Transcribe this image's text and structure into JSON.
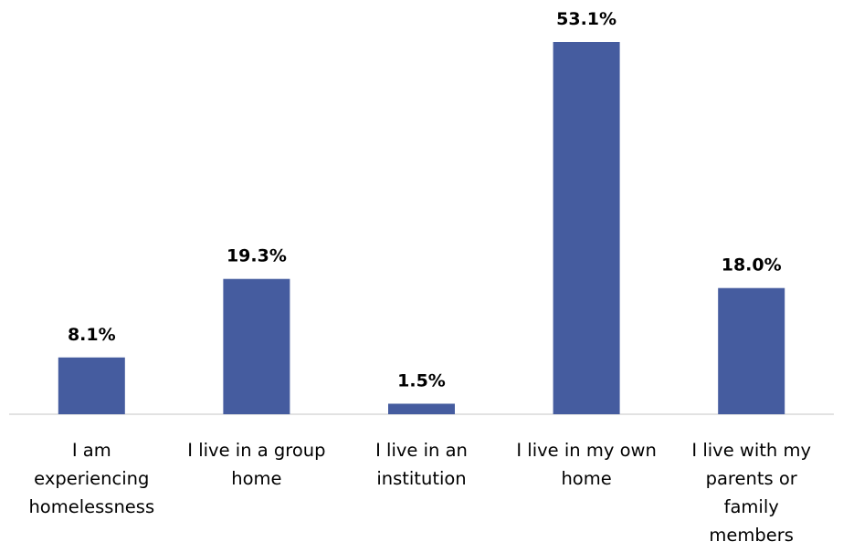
{
  "chart_data": {
    "type": "bar",
    "categories": [
      [
        "I am",
        "experiencing",
        "homelessness"
      ],
      [
        "I live in a group",
        "home"
      ],
      [
        "I live in an",
        "institution"
      ],
      [
        "I live in my own",
        "home"
      ],
      [
        "I live with my",
        "parents or",
        "family",
        "members"
      ]
    ],
    "values": [
      8.1,
      19.3,
      1.5,
      53.1,
      18.0
    ],
    "data_labels": [
      "8.1%",
      "19.3%",
      "1.5%",
      "53.1%",
      "18.0%"
    ],
    "bar_color": "#455C9F",
    "axis_color": "#D9D9D9",
    "ylim": [
      0,
      53.1
    ],
    "grid": false,
    "legend": "none"
  }
}
